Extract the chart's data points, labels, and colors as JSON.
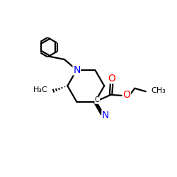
{
  "background": "#ffffff",
  "atom_colors": {
    "C": "#000000",
    "N": "#0000ff",
    "O": "#ff0000",
    "H": "#000000"
  },
  "bond_color": "#000000",
  "bond_width": 1.6,
  "font_size_label": 9
}
